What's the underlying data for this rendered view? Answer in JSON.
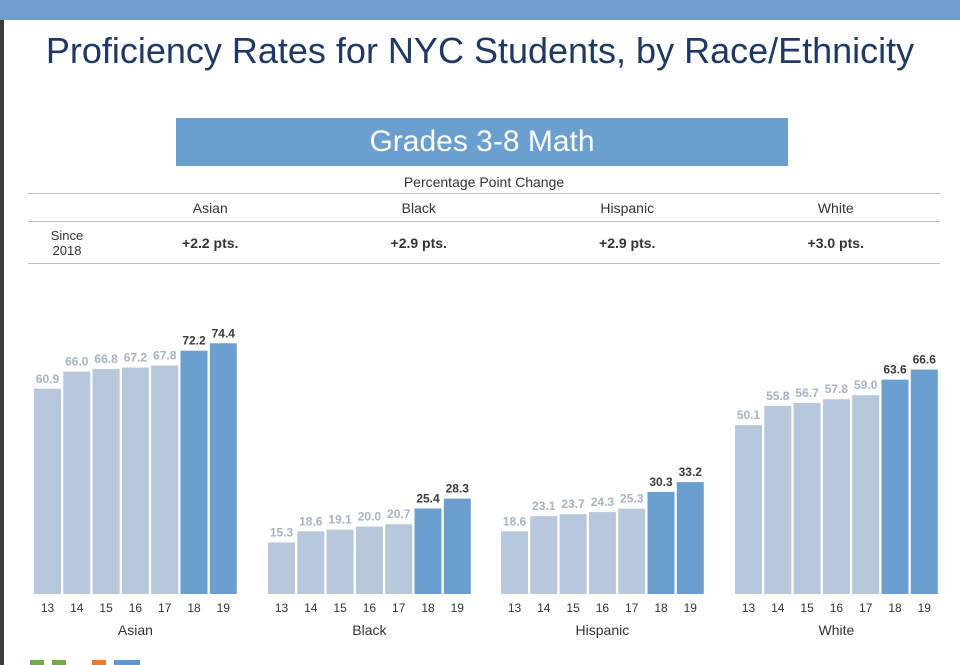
{
  "title": "Proficiency Rates for NYC Students, by Race/Ethnicity",
  "subtitle": "Grades 3-8 Math",
  "change_table": {
    "caption": "Percentage Point Change",
    "row_label_line1": "Since",
    "row_label_line2": "2018",
    "groups": [
      "Asian",
      "Black",
      "Hispanic",
      "White"
    ],
    "changes": [
      "+2.2 pts.",
      "+2.9 pts.",
      "+2.9 pts.",
      "+3.0 pts."
    ]
  },
  "colors": {
    "bar_light": "#b7c8dc",
    "bar_dark": "#6a9fd0",
    "label_light": "#a6b3c2",
    "label_dark": "#3b3b3b",
    "title": "#1f3864",
    "banner": "#6a9fd0"
  },
  "chart_data": {
    "type": "bar",
    "categories": [
      "13",
      "14",
      "15",
      "16",
      "17",
      "18",
      "19"
    ],
    "highlight_categories": [
      "18",
      "19"
    ],
    "ylim": [
      0,
      80
    ],
    "grid": false,
    "series": [
      {
        "name": "Asian",
        "values": [
          60.9,
          66.0,
          66.8,
          67.2,
          67.8,
          72.2,
          74.4
        ]
      },
      {
        "name": "Black",
        "values": [
          15.3,
          18.6,
          19.1,
          20.0,
          20.7,
          25.4,
          28.3
        ]
      },
      {
        "name": "Hispanic",
        "values": [
          18.6,
          23.1,
          23.7,
          24.3,
          25.3,
          30.3,
          33.2
        ]
      },
      {
        "name": "White",
        "values": [
          50.1,
          55.8,
          56.7,
          57.8,
          59.0,
          63.6,
          66.6
        ]
      }
    ]
  }
}
